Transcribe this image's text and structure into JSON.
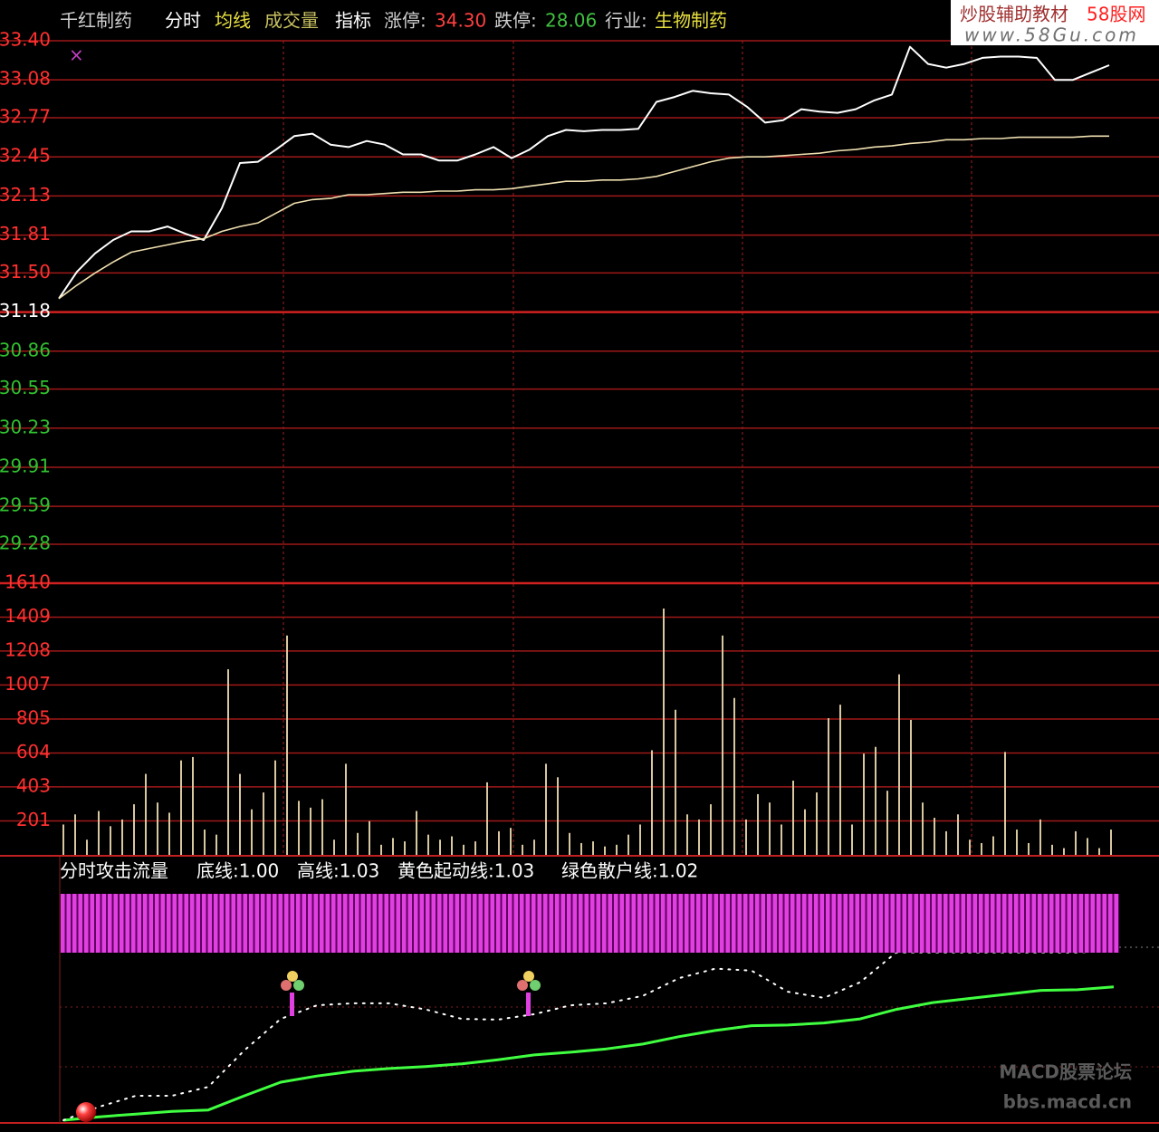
{
  "header": [
    {
      "text": "千红制药",
      "color": "#d0d0d0"
    },
    {
      "text": "分时",
      "color": "#ffffff"
    },
    {
      "text": "均线",
      "color": "#e8e040"
    },
    {
      "text": "成交量",
      "color": "#c8c060"
    },
    {
      "text": "指标",
      "color": "#ffffff"
    },
    {
      "text": "涨停:",
      "color": "#d0d0d0"
    },
    {
      "text": "34.30",
      "color": "#ff4040"
    },
    {
      "text": "跌停:",
      "color": "#d0d0d0"
    },
    {
      "text": "28.06",
      "color": "#40c040"
    },
    {
      "text": "行业:",
      "color": "#d0d0d0"
    },
    {
      "text": "生物制药",
      "color": "#e8e040"
    }
  ],
  "watermark": {
    "site": "炒股辅助教材",
    "brand": "58股网",
    "url": "www.58Gu.com",
    "forum": "MACD股票论坛",
    "forum_url": "bbs.macd.cn"
  },
  "chart_data": [
    {
      "type": "line",
      "ylim": [
        29.28,
        33.4
      ],
      "yticks": [
        {
          "value": 33.4,
          "label": "33.40"
        },
        33.08,
        32.77,
        32.45,
        32.13,
        31.81,
        {
          "value": 31.5,
          "label": "31.50"
        },
        31.18,
        30.86,
        30.55,
        30.23,
        29.91,
        29.59,
        29.28
      ],
      "ytick_colors": [
        "#ff3030",
        "#ff3030",
        "#ff3030",
        "#ff3030",
        "#ff3030",
        "#ff3030",
        "#ff3030",
        "#ffffff",
        "#30c030",
        "#30c030",
        "#30c030",
        "#30c030",
        "#30c030",
        "#30c030"
      ],
      "grid": true,
      "series": [
        {
          "color": "#ffffff",
          "values": [
            31.29,
            31.51,
            31.66,
            31.77,
            31.84,
            31.84,
            31.88,
            31.82,
            31.77,
            32.03,
            32.4,
            32.41,
            32.51,
            32.62,
            32.64,
            32.55,
            32.53,
            32.58,
            32.55,
            32.47,
            32.47,
            32.42,
            32.42,
            32.47,
            32.53,
            32.44,
            32.51,
            32.62,
            32.67,
            32.66,
            32.67,
            32.67,
            32.68,
            32.9,
            32.94,
            32.99,
            32.97,
            32.96,
            32.86,
            32.73,
            32.75,
            32.84,
            32.82,
            32.81,
            32.84,
            32.91,
            32.96,
            33.35,
            33.21,
            33.18,
            33.21,
            33.26,
            33.27,
            33.27,
            33.26,
            33.08,
            33.08,
            33.14,
            33.2
          ]
        },
        {
          "color": "#f0e0b0",
          "values": [
            31.29,
            31.4,
            31.5,
            31.59,
            31.67,
            31.7,
            31.73,
            31.76,
            31.78,
            31.84,
            31.88,
            31.91,
            31.99,
            32.07,
            32.1,
            32.11,
            32.14,
            32.14,
            32.15,
            32.16,
            32.16,
            32.17,
            32.17,
            32.18,
            32.18,
            32.19,
            32.21,
            32.23,
            32.25,
            32.25,
            32.26,
            32.26,
            32.27,
            32.29,
            32.33,
            32.37,
            32.41,
            32.44,
            32.45,
            32.45,
            32.46,
            32.47,
            32.48,
            32.5,
            32.51,
            32.53,
            32.54,
            32.56,
            32.57,
            32.59,
            32.59,
            32.6,
            32.6,
            32.61,
            32.61,
            32.61,
            32.61,
            32.62,
            32.62
          ]
        }
      ]
    },
    {
      "type": "bar",
      "ylim": [
        0,
        1610
      ],
      "yticks": [
        1610,
        1409,
        1208,
        1007,
        805,
        604,
        403,
        201
      ],
      "ytick_color": "#ff3030",
      "grid": true,
      "color": "#d8c8a0",
      "values": [
        180,
        240,
        90,
        260,
        170,
        210,
        300,
        480,
        310,
        250,
        560,
        580,
        150,
        120,
        1100,
        480,
        270,
        370,
        560,
        1300,
        320,
        280,
        330,
        90,
        540,
        130,
        200,
        60,
        100,
        80,
        260,
        120,
        90,
        110,
        60,
        80,
        430,
        140,
        160,
        60,
        90,
        540,
        460,
        130,
        70,
        80,
        50,
        60,
        120,
        180,
        620,
        1460,
        860,
        240,
        210,
        300,
        1300,
        930,
        210,
        360,
        310,
        180,
        440,
        270,
        370,
        810,
        890,
        180,
        600,
        640,
        380,
        1070,
        800,
        310,
        220,
        140,
        240,
        90,
        70,
        110,
        610,
        150,
        70,
        210,
        60,
        40,
        140,
        100,
        40,
        150
      ]
    },
    {
      "type": "line",
      "title_items": [
        {
          "text": "分时攻击流量",
          "color": "#ffffff"
        },
        {
          "text": "底线:1.00",
          "color": "#ffffff"
        },
        {
          "text": "高线:1.03",
          "color": "#ffffff"
        },
        {
          "text": "黄色起动线:1.03",
          "color": "#ffffff"
        },
        {
          "text": "绿色散户线:1.02",
          "color": "#ffffff"
        }
      ],
      "ylim": [
        1.0,
        1.0333
      ],
      "series": [
        {
          "color": "#40ff40",
          "style": "solid",
          "values": [
            1.0004,
            1.0009,
            1.0013,
            1.0017,
            1.0019,
            1.004,
            1.006,
            1.0069,
            1.0076,
            1.008,
            1.0083,
            1.0087,
            1.0093,
            1.01,
            1.0104,
            1.0109,
            1.0116,
            1.0127,
            1.0136,
            1.0143,
            1.0144,
            1.0147,
            1.0153,
            1.0167,
            1.0177,
            1.0183,
            1.0189,
            1.0195,
            1.0196,
            1.02
          ]
        },
        {
          "color": "#ffffff",
          "style": "dotted",
          "values": [
            1.0004,
            1.0024,
            1.004,
            1.004,
            1.0053,
            1.0107,
            1.0153,
            1.0173,
            1.0176,
            1.0176,
            1.0167,
            1.0153,
            1.0152,
            1.016,
            1.0173,
            1.0176,
            1.0187,
            1.0213,
            1.0227,
            1.0224,
            1.0193,
            1.0184,
            1.0207,
            1.0251,
            1.0251,
            1.0251,
            1.0251,
            1.0251,
            1.0251,
            1.0253
          ]
        }
      ]
    }
  ]
}
